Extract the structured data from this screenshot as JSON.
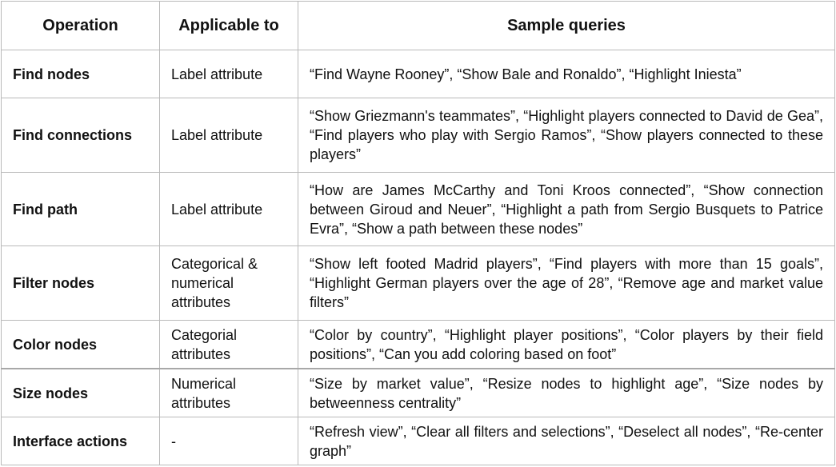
{
  "headers": {
    "operation": "Operation",
    "applicable": "Applicable to",
    "queries": "Sample queries"
  },
  "rows": [
    {
      "operation": "Find nodes",
      "applicable": "Label attribute",
      "queries": "“Find Wayne Rooney”, “Show Bale and Ronaldo”, “Highlight Iniesta”"
    },
    {
      "operation": "Find connections",
      "applicable": "Label attribute",
      "queries": "“Show Griezmann's teammates”, “Highlight players connected to David de Gea”, “Find players who play with Sergio Ramos”, “Show players connected to these players”"
    },
    {
      "operation": "Find path",
      "applicable": "Label attribute",
      "queries": "“How are James McCarthy and Toni Kroos connected”, “Show connection between Giroud and Neuer”, “Highlight a path from Sergio Busquets to Patrice Evra”, “Show a path between these nodes”"
    },
    {
      "operation": "Filter nodes",
      "applicable": "Categorical & numerical attributes",
      "queries": "“Show left footed Madrid players”, “Find players with more than 15 goals”, “Highlight German players over the age of 28”, “Remove age and market value filters”"
    },
    {
      "operation": "Color nodes",
      "applicable": "Categorial attributes",
      "queries": "“Color by country”, “Highlight player positions”, “Color players by their field positions”, “Can you add coloring based on foot”"
    },
    {
      "operation": "Size nodes",
      "applicable": "Numerical attributes",
      "queries": "“Size by market value”, “Resize nodes to highlight age”, “Size nodes by betweenness centrality”"
    },
    {
      "operation": "Interface actions",
      "applicable": "-",
      "queries": "“Refresh view”, “Clear all filters and selections”, “Deselect all nodes”, “Re-center graph”"
    }
  ]
}
